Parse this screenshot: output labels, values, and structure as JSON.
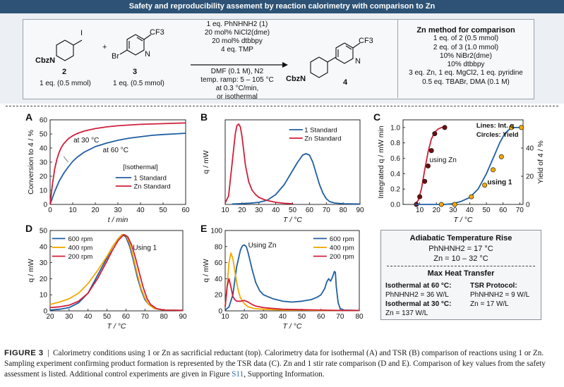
{
  "banner": "Safety and reproducibility assement by reaction calorimetry with comparison to Zn",
  "scheme": {
    "reagent1_label": "CbzN",
    "reagent1_num": "2",
    "reagent1_eq": "1 eq. (0.5 mmol)",
    "reagent2_br": "Br",
    "reagent2_n": "N",
    "reagent2_cf3": "CF3",
    "reagent2_num": "3",
    "reagent2_eq": "1 eq. (0.5 mmol)",
    "plus": "+",
    "iodo": "I",
    "conditions_above": [
      "1 eq. PhNHNH2 (1)",
      "20 mol% NiCl2(dme)",
      "20 mol% dtbbpy",
      "4 eq. TMP"
    ],
    "conditions_below": [
      "DMF (0.1 M), N2",
      "temp. ramp: 5 – 105 °C",
      "at 0.3 °C/min,",
      "or isothermal"
    ],
    "product_label": "CbzN",
    "product_n": "N",
    "product_cf3": "CF3",
    "product_num": "4",
    "zn_title": "Zn method for comparison",
    "zn_lines": [
      "1 eq. of 2 (0.5 mmol)",
      "2 eq. of 3 (1.0 mmol)",
      "10% NiBr2(dme)",
      "10% dtbbpy",
      "3 eq. Zn, 1 eq. MgCl2, 1 eq. pyridine",
      "0.5 eq. TBABr, DMA (0.1 M)"
    ]
  },
  "panels": {
    "A": "A",
    "B": "B",
    "C": "C",
    "D": "D",
    "E": "E"
  },
  "colors": {
    "blue": "#1f5fa3",
    "red": "#d11f3a",
    "orange": "#f2a900",
    "darkred": "#6b1010"
  },
  "chart_data": [
    {
      "id": "A",
      "type": "line",
      "xlabel": "t / min",
      "ylabel": "Conversion to 4 / %",
      "xlim": [
        0,
        60
      ],
      "ylim": [
        0,
        60
      ],
      "xticks": [
        0,
        10,
        20,
        30,
        40,
        50,
        60
      ],
      "yticks": [
        0,
        10,
        20,
        30,
        40,
        50,
        60
      ],
      "legend_title": "[Isothermal]",
      "annotations": [
        "at 30 °C",
        "at 60 °C"
      ],
      "series": [
        {
          "name": "1 Standard",
          "color": "blue",
          "x": [
            0,
            2,
            4,
            6,
            8,
            10,
            12,
            15,
            20,
            25,
            30,
            35,
            40,
            45,
            50,
            55,
            60
          ],
          "y": [
            0,
            9,
            16.5,
            22,
            26.5,
            30.5,
            33.5,
            37,
            41,
            43.5,
            45.5,
            47,
            48,
            49,
            49.6,
            50,
            50.5
          ]
        },
        {
          "name": "Zn Standard",
          "color": "red",
          "x": [
            0,
            1,
            2,
            3,
            4,
            5,
            6,
            8,
            10,
            12,
            15,
            20,
            25,
            30,
            40,
            50,
            60
          ],
          "y": [
            0,
            14,
            25,
            32,
            37,
            40.5,
            43,
            46.5,
            48.7,
            50.3,
            52,
            53.8,
            55,
            55.8,
            56.8,
            57.3,
            57.8
          ]
        }
      ]
    },
    {
      "id": "B",
      "type": "line",
      "xlabel": "T / °C",
      "ylabel": "q / mW",
      "xlim": [
        10,
        90
      ],
      "xticks": [
        10,
        20,
        30,
        40,
        50,
        60,
        70,
        80,
        90
      ],
      "series": [
        {
          "name": "1 Standard",
          "color": "blue",
          "x": [
            14,
            20,
            25,
            30,
            35,
            40,
            45,
            50,
            53,
            56,
            58,
            60,
            62,
            64,
            66,
            68,
            70,
            72,
            75,
            80,
            90
          ],
          "y": [
            0.3,
            0.6,
            0.9,
            1.5,
            3,
            7,
            14,
            24,
            30,
            35,
            36,
            35,
            30,
            22,
            14,
            8,
            4,
            2,
            1,
            0.5,
            0.3
          ]
        },
        {
          "name": "Zn Standard",
          "color": "red",
          "x": [
            10,
            12,
            14,
            16,
            17,
            18,
            19,
            20,
            21,
            22,
            24,
            26,
            28,
            30,
            33,
            36,
            40,
            45,
            50
          ],
          "y": [
            1,
            6,
            28,
            50,
            56,
            57,
            55,
            48,
            38,
            28,
            16,
            10,
            7,
            5,
            3.5,
            2.5,
            1.5,
            0.8,
            0.5
          ]
        }
      ]
    },
    {
      "id": "C",
      "type": "scatter",
      "xlabel": "T / °C",
      "ylabel": "Integrated q / mW min",
      "y2label": "Yield of 4 / %",
      "xlim": [
        0,
        72
      ],
      "ylim": [
        0,
        1.1
      ],
      "y2lim": [
        0,
        60
      ],
      "xticks": [
        10,
        20,
        30,
        40,
        50,
        60,
        70
      ],
      "yticks": [
        0,
        0.2,
        0.4,
        0.6,
        0.8,
        1.0
      ],
      "y2ticks": [
        0,
        20,
        40
      ],
      "legend_lines": "Lines: Int. q",
      "legend_circles": "Circles: Yield",
      "annotations": [
        "using Zn",
        "using 1"
      ],
      "series": [
        {
          "name": "using Zn",
          "color": "red",
          "kind": "line",
          "x": [
            7,
            9,
            11,
            13,
            15,
            17,
            19,
            21,
            23,
            26
          ],
          "y": [
            0,
            0.05,
            0.2,
            0.45,
            0.68,
            0.85,
            0.94,
            0.98,
            1.0,
            1.0
          ]
        },
        {
          "name": "using Zn yield",
          "color": "darkred",
          "kind": "points",
          "x": [
            8,
            10,
            13,
            15,
            17,
            19,
            25
          ],
          "y": [
            0,
            0.1,
            0.3,
            0.5,
            0.7,
            0.92,
            1.0
          ]
        },
        {
          "name": "using 1",
          "color": "blue",
          "kind": "line",
          "x": [
            7,
            15,
            25,
            30,
            35,
            40,
            45,
            50,
            55,
            58,
            61,
            64,
            67,
            70
          ],
          "y": [
            0,
            0,
            0,
            0.01,
            0.04,
            0.09,
            0.2,
            0.4,
            0.65,
            0.8,
            0.92,
            0.98,
            1.0,
            1.0
          ]
        },
        {
          "name": "using 1 yield",
          "color": "orange",
          "kind": "points",
          "x": [
            23,
            31,
            41,
            49,
            54,
            59,
            65,
            71
          ],
          "y": [
            0,
            0,
            0.1,
            0.25,
            0.45,
            0.62,
            1.0,
            1.0
          ]
        }
      ]
    },
    {
      "id": "D",
      "type": "line",
      "xlabel": "T / °C",
      "ylabel": "q / mW",
      "xlim": [
        20,
        90
      ],
      "ylim": [
        0,
        50
      ],
      "xticks": [
        20,
        30,
        40,
        50,
        60,
        70,
        80,
        90
      ],
      "yticks": [
        0,
        10,
        20,
        30,
        40,
        50
      ],
      "annotations": [
        "Using 1"
      ],
      "series": [
        {
          "name": "600 rpm",
          "color": "blue",
          "x": [
            20,
            25,
            30,
            35,
            40,
            45,
            50,
            53,
            56,
            58,
            60,
            62,
            64,
            66,
            68,
            70,
            72,
            75,
            80,
            90
          ],
          "y": [
            0.5,
            1,
            2,
            5,
            11,
            22,
            33,
            40,
            45,
            47.5,
            46,
            40,
            31,
            21,
            13,
            7,
            4,
            1.5,
            0.5,
            0.3
          ]
        },
        {
          "name": "400 rpm",
          "color": "orange",
          "x": [
            20,
            25,
            30,
            35,
            40,
            45,
            50,
            53,
            56,
            58,
            60,
            62,
            64,
            66,
            68,
            70,
            72,
            75,
            80,
            90
          ],
          "y": [
            4,
            5.5,
            7.5,
            11,
            17,
            25,
            34,
            40,
            45,
            47.5,
            47,
            42,
            33,
            23,
            14,
            8,
            4,
            1.5,
            0.5,
            0.3
          ]
        },
        {
          "name": "200 rpm",
          "color": "red",
          "x": [
            20,
            25,
            30,
            35,
            40,
            45,
            50,
            53,
            56,
            59,
            61,
            63,
            65,
            67,
            69,
            71,
            73,
            76,
            80,
            90
          ],
          "y": [
            2,
            2.5,
            3.5,
            6,
            11,
            20,
            31,
            38,
            44,
            47.5,
            46,
            41,
            33,
            24,
            15,
            8,
            4,
            1.5,
            0.5,
            0.3
          ]
        }
      ]
    },
    {
      "id": "E",
      "type": "line",
      "xlabel": "T / °C",
      "ylabel": "q / mW",
      "xlim": [
        10,
        80
      ],
      "ylim": [
        0,
        100
      ],
      "xticks": [
        10,
        20,
        30,
        40,
        50,
        60,
        70,
        80
      ],
      "yticks": [
        0,
        20,
        40,
        60,
        80,
        100
      ],
      "annotations": [
        "Using Zn"
      ],
      "series": [
        {
          "name": "600 rpm",
          "color": "blue",
          "x": [
            10,
            12,
            14,
            16,
            18,
            19,
            20,
            21,
            22,
            24,
            26,
            28,
            30,
            35,
            40,
            45,
            50,
            55,
            58,
            60,
            62,
            63,
            64,
            65,
            66,
            67,
            67.5,
            68,
            69,
            70,
            72,
            80
          ],
          "y": [
            1,
            5,
            20,
            55,
            76,
            81,
            82,
            80,
            72,
            52,
            35,
            25,
            20,
            15,
            12,
            11,
            12,
            14,
            17,
            20,
            28,
            36,
            40,
            37,
            42,
            49,
            48,
            30,
            10,
            3,
            1,
            0.5
          ]
        },
        {
          "name": "400 rpm",
          "color": "orange",
          "x": [
            10,
            11,
            12,
            13,
            14,
            15,
            16,
            17,
            18,
            20,
            22,
            25,
            30,
            40,
            50,
            60,
            70,
            80
          ],
          "y": [
            5,
            30,
            60,
            72,
            65,
            50,
            35,
            24,
            16,
            9,
            5,
            3,
            2,
            1,
            1,
            0.5,
            0.5,
            0.5
          ]
        },
        {
          "name": "200 rpm",
          "color": "red",
          "x": [
            10,
            11,
            12,
            13,
            14,
            15,
            16,
            18,
            20,
            22,
            24,
            26,
            28,
            30,
            35,
            40,
            50,
            60,
            70,
            80
          ],
          "y": [
            5,
            30,
            40,
            30,
            18,
            14,
            12,
            12,
            13,
            11,
            8,
            6,
            5,
            4,
            3,
            2,
            1.5,
            1,
            0.5,
            0.5
          ]
        }
      ]
    }
  ],
  "info": {
    "title1": "Adiabatic Temperature Rise",
    "line1": "PhNHNH2 = 17 °C",
    "line2": "Zn = 10 – 32 °C",
    "title2": "Max Heat Transfer",
    "h60": "Isothermal at 60 °C:",
    "v60": "PhNHNH2 = 36 W/L",
    "h30": "Isothermal at 30 °C:",
    "v30": "Zn = 137 W/L",
    "htsr": "TSR Protocol:",
    "vtsr1": "PhNHNH2 = 9 W/L",
    "vtsr2": "Zn = 17 W/L"
  },
  "caption": {
    "fig": "FIGURE 3",
    "text": "Calorimetry conditions using 1 or Zn as sacrificial reductant (top). Calorimetry data for isothermal (A) and TSR (B) comparison of reactions using 1 or Zn. Sampling experiment confirming product formation is represented by the TSR data (C). Zn and 1 stir rate comparison (D and E). Comparison of key values from the safety assessment is listed. Additional control experiments are given in Figure ",
    "link": "S11",
    "end": ", Supporting Information."
  }
}
